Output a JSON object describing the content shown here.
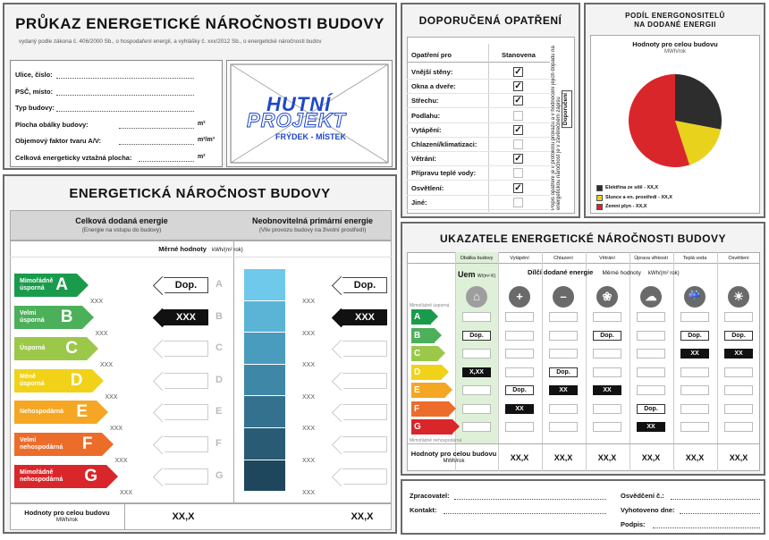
{
  "header": {
    "title": "PRŮKAZ ENERGETICKÉ NÁROČNOSTI BUDOVY",
    "subtitle": "vydaný podle zákona č. 406/2000 Sb., o hospodaření energií, a vyhlášky č. xxx/2012 Sb., o energetické náročnosti budov"
  },
  "info_fields": [
    {
      "label": "Ulice, číslo:",
      "unit": ""
    },
    {
      "label": "PSČ, místo:",
      "unit": ""
    },
    {
      "label": "Typ budovy:",
      "unit": ""
    },
    {
      "label": "Plocha obálky budovy:",
      "unit": "m²"
    },
    {
      "label": "Objemový faktor tvaru A/V:",
      "unit": "m²/m³"
    },
    {
      "label": "Celková energeticky vztažná plocha:",
      "unit": "m²"
    }
  ],
  "logo": {
    "line1": "HUTNÍ",
    "line2": "PROJEKT",
    "line3": "FRÝDEK - MÍSTEK"
  },
  "recommended": {
    "title": "DOPORUČENÁ OPATŘENÍ",
    "col_measure": "Opatření pro",
    "col_set": "Stanovena",
    "side_note": "Popis opatření je v protokolu průkazu a v hodnocení jejich dopadu na energetickou náročnost je v závěrečném zápisu",
    "side_tag": "Doporučení",
    "items": [
      {
        "label": "Vnější stěny:",
        "checked": true
      },
      {
        "label": "Okna a dveře:",
        "checked": true
      },
      {
        "label": "Střechu:",
        "checked": true
      },
      {
        "label": "Podlahu:",
        "checked": false
      },
      {
        "label": "Vytápění:",
        "checked": true
      },
      {
        "label": "Chlazení/klimatizaci:",
        "checked": false
      },
      {
        "label": "Větrání:",
        "checked": true
      },
      {
        "label": "Přípravu teplé vody:",
        "checked": false
      },
      {
        "label": "Osvětlení:",
        "checked": true
      },
      {
        "label": "Jiné:",
        "checked": false
      }
    ]
  },
  "carriers": {
    "title": "PODÍL ENERGONOSITELŮ NA DODANÉ ENERGII",
    "sub": "Hodnoty pro celou budovu",
    "unit": "MWh/rok",
    "legend": [
      {
        "label": "Elektřina ze sítě - XX,X",
        "color": "#2d2d2d"
      },
      {
        "label": "Slunce a en. prostředí - XX,X",
        "color": "#e8d21c"
      },
      {
        "label": "Zemní plyn - XX,X",
        "color": "#d9262a"
      }
    ]
  },
  "chart_data": {
    "type": "pie",
    "categories": [
      "Elektřina ze sítě",
      "Slunce a en. prostředí",
      "Zemní plyn"
    ],
    "values": [
      28,
      17,
      55
    ],
    "colors": [
      "#2d2d2d",
      "#e8d21c",
      "#d9262a"
    ]
  },
  "energy": {
    "title": "ENERGETICKÁ NÁROČNOST BUDOVY",
    "col1_title": "Celková dodaná energie",
    "col1_sub": "(Energie na vstupu do budovy)",
    "col2_title": "Neobnovitelná primární energie",
    "col2_sub": "(Vliv provozu budovy na životní prostředí)",
    "measured_label": "Měrné hodnoty",
    "measured_unit": "kWh/(m² rok)",
    "classes": [
      {
        "letter": "A",
        "label": "Mimořádně úsporná",
        "color": "#1a9b4b",
        "xxx": "XXX"
      },
      {
        "letter": "B",
        "label": "Velmi úsporná",
        "color": "#4cb05a",
        "xxx": "XXX"
      },
      {
        "letter": "C",
        "label": "Úsporná",
        "color": "#9cc84a",
        "xxx": "XXX"
      },
      {
        "letter": "D",
        "label": "Méně úsporná",
        "color": "#f1d219",
        "xxx": "XXX"
      },
      {
        "letter": "E",
        "label": "Nehospodárná",
        "color": "#f5a623",
        "xxx": "XXX"
      },
      {
        "letter": "F",
        "label": "Velmi nehospodárná",
        "color": "#ec6c2a",
        "xxx": "XXX"
      },
      {
        "letter": "G",
        "label": "Mimořádně nehospodárná",
        "color": "#d9262a",
        "xxx": "XXX"
      }
    ],
    "tag_dop": "Dop.",
    "tag_value": "XXX",
    "primary_colors": [
      "#6fc9ea",
      "#5bb4d6",
      "#4a9cbf",
      "#3f87a7",
      "#34718e",
      "#295b74",
      "#1e465c"
    ],
    "footer_label": "Hodnoty pro celou budovu",
    "footer_unit": "MWh/rok",
    "footer_val1": "XX,X",
    "footer_val2": "XX,X"
  },
  "indicators": {
    "title": "UKAZATELE ENERGETICKÉ NÁROČNOSTI BUDOVY",
    "columns": [
      "Obálka budovy",
      "Vytápění",
      "Chlazení",
      "Větrání",
      "Úprava vlhkosti",
      "Teplá voda",
      "Osvětlení"
    ],
    "uem_label": "Uem",
    "uem_unit": "W/(m²·K)",
    "partial_label": "Dílčí dodané energie",
    "partial_measured": "Měrné hodnoty",
    "partial_unit": "kWh/(m² rok)",
    "left_top": "Mimořádně úsporná",
    "left_bottom": "Mimořádně nehospodárná",
    "letters": [
      "A",
      "B",
      "C",
      "D",
      "E",
      "F",
      "G"
    ],
    "tag_dop": "Dop.",
    "tag_xx": "XX",
    "tag_xxx": "X,XX",
    "footer_label": "Hodnoty pro celou budovu",
    "footer_unit": "MWh/rok",
    "values": [
      "XX,X",
      "XX,X",
      "XX,X",
      "XX,X",
      "XX,X",
      "XX,X"
    ]
  },
  "signature": {
    "processor": "Zpracovatel:",
    "contact": "Kontakt:",
    "certificate": "Osvědčení č.:",
    "issued": "Vyhotoveno dne:",
    "signature": "Podpis:"
  }
}
